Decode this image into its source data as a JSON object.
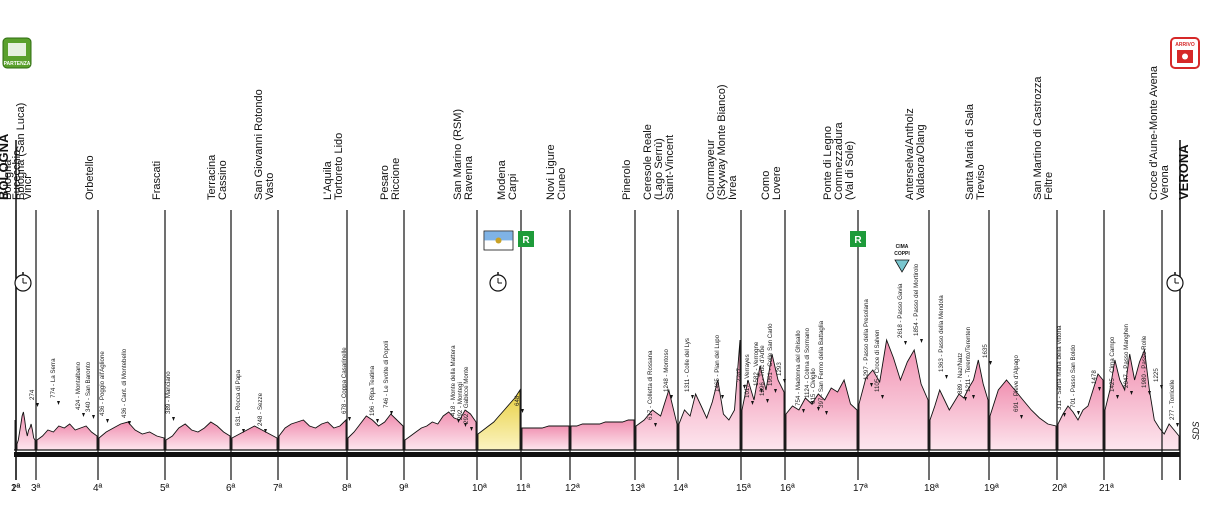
{
  "start_badge": {
    "text": "PARTENZA",
    "color": "#5aa02c"
  },
  "finish_badge": {
    "text": "ARRIVO",
    "color": "#d62828"
  },
  "cima_coppi": {
    "line1": "CIMA",
    "line2": "COPPI",
    "color": "#79c6cf"
  },
  "credit": "SDS",
  "colors": {
    "tt": "#f2e28a",
    "road": "#f5b2c6",
    "band": "#111111",
    "line": "#111111"
  },
  "stages": [
    {
      "n": "1ª",
      "labels": [
        "BOLOGNA",
        "Bologna (San Luca)"
      ],
      "bold": [
        0
      ]
    },
    {
      "n": "2ª",
      "labels": [
        "Bologna"
      ]
    },
    {
      "n": "3ª",
      "labels": [
        "Fucecchio",
        "Vinci"
      ]
    },
    {
      "n": "4ª",
      "labels": [
        "Orbetello"
      ]
    },
    {
      "n": "5ª",
      "labels": [
        "Frascati"
      ]
    },
    {
      "n": "6ª",
      "labels": [
        "Terracina",
        "Cassino"
      ]
    },
    {
      "n": "7ª",
      "labels": [
        "San Giovanni Rotondo",
        "Vasto"
      ]
    },
    {
      "n": "8ª",
      "labels": [
        "L'Aquila",
        "Tortoreto Lido"
      ]
    },
    {
      "n": "9ª",
      "labels": [
        "Pesaro",
        "Riccione"
      ]
    },
    {
      "n": "10ª",
      "labels": [
        "San Marino (RSM)",
        "Ravenna"
      ]
    },
    {
      "n": "11ª",
      "labels": [
        "Modena",
        "Carpi"
      ]
    },
    {
      "n": "12ª",
      "labels": [
        "Novi Ligure",
        "Cuneo"
      ]
    },
    {
      "n": "13ª",
      "labels": [
        "Pinerolo"
      ]
    },
    {
      "n": "14ª",
      "labels": [
        "Ceresole Reale",
        "(Lago Serrù)",
        "Saint-Vincent"
      ]
    },
    {
      "n": "15ª",
      "labels": [
        "Courmayeur",
        "(Skyway Monte Bianco)",
        "Ivrea"
      ]
    },
    {
      "n": "16ª",
      "labels": [
        "Como",
        "Lovere"
      ]
    },
    {
      "n": "17ª",
      "labels": [
        "Ponte di Legno",
        "Commezzadura",
        "(Val di Sole)"
      ]
    },
    {
      "n": "18ª",
      "labels": [
        "Anterselva/Antholz",
        "Valdaora/Olang"
      ]
    },
    {
      "n": "19ª",
      "labels": [
        "Santa Maria di Sala",
        "Treviso"
      ]
    },
    {
      "n": "20ª",
      "labels": [
        "San Martino di Castrozza",
        "Feltre"
      ]
    },
    {
      "n": "21ª",
      "labels": [
        "Croce d'Aune-Monte Avena",
        "Verona",
        "VERONA"
      ],
      "bold": [
        2
      ]
    }
  ],
  "climbs": [
    "274",
    "774 - La Serra",
    "424 - Montalbano",
    "340 - San Baronto",
    "436 - Poggio all'Aglione",
    "436 - Cant. di Montebello",
    "389 - Manciano",
    "631 - Rocca di Papa",
    "248 - Sezze",
    "678 - Coppa Casarinelle",
    "196 - Ripa Teatina",
    "746 - Le Svolte di Popoli",
    "418 - Monte della Mattera",
    "292 - Montegi",
    "292 - Gabicce Monte",
    "648",
    "617 - Colletta di Rossana",
    "1248 - Montoso",
    "1311 - Colle del Lys",
    "1465 - Pian del Lupo",
    "2247",
    "1017 - Verrayes",
    "1582 - Verrogne",
    "1296 - Truc d'Arbe",
    "1951 - Colle San Carlo",
    "1293",
    "754 - Madonna del Ghisallo",
    "1124 - Colma di Sormano",
    "615 - Civiglio",
    "397 - San Fermo della Battaglia",
    "1297 - Passo della Presolana",
    "1105 - Croce di Salven",
    "2618 - Passo Gavia",
    "1854 - Passo del Mortirolo",
    "1363 - Passo della Mendola",
    "889 - Naz/Natz",
    "1211 - Terento/Terenten",
    "1635",
    "691 - Pieve d'Alpago",
    "311 - Santa Maria della Vittoria",
    "701 - Passo San Boldo",
    "1478",
    "1425 - Cima Campo",
    "2047 - Passo Manghen",
    "1980 - Passo Rolle",
    "1225",
    "277 - Torricelle"
  ]
}
